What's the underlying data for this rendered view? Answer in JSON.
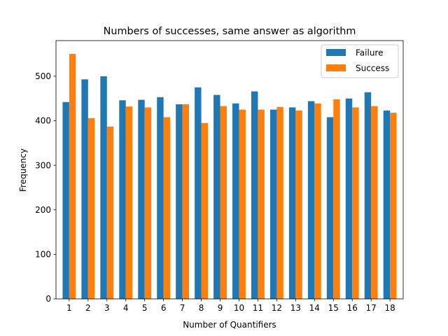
{
  "chart_data": {
    "type": "bar",
    "title": "Numbers of successes, same answer as algorithm",
    "xlabel": "Number of Quantifiers",
    "ylabel": "Frequency",
    "categories": [
      "1",
      "2",
      "3",
      "4",
      "5",
      "6",
      "7",
      "8",
      "9",
      "10",
      "11",
      "12",
      "13",
      "14",
      "15",
      "16",
      "17",
      "18"
    ],
    "ylim": [
      0,
      580
    ],
    "yticks": [
      0,
      100,
      200,
      300,
      400,
      500
    ],
    "legend_position": "top-right",
    "grid": false,
    "series": [
      {
        "name": "Failure",
        "color": "#1f77b4",
        "values": [
          442,
          493,
          500,
          446,
          447,
          453,
          437,
          475,
          458,
          439,
          466,
          425,
          430,
          444,
          408,
          450,
          464,
          423
        ]
      },
      {
        "name": "Success",
        "color": "#ff7f0e",
        "values": [
          550,
          406,
          387,
          432,
          430,
          408,
          437,
          395,
          433,
          425,
          425,
          431,
          423,
          439,
          448,
          430,
          433,
          418
        ]
      }
    ]
  }
}
